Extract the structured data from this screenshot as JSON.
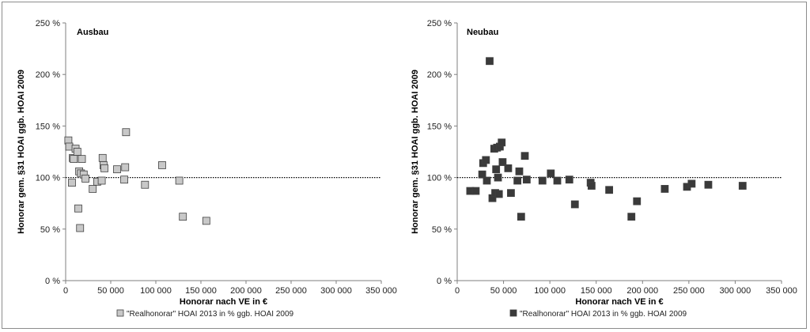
{
  "chart_data": [
    {
      "type": "scatter",
      "title": "Ausbau",
      "xlabel": "Honorar  nach VE in €",
      "ylabel": "Honorar gem. §31 HOAI ggb. HOAI 2009",
      "xlim": [
        0,
        350000
      ],
      "ylim": [
        0,
        250
      ],
      "x_ticks": [
        0,
        50000,
        100000,
        150000,
        200000,
        250000,
        300000,
        350000
      ],
      "x_tick_labels": [
        "0",
        "50 000",
        "100 000",
        "150 000",
        "200 000",
        "250 000",
        "300 000",
        "350 000"
      ],
      "y_ticks": [
        0,
        50,
        100,
        150,
        200,
        250
      ],
      "y_tick_labels": [
        "0 %",
        "50 %",
        "100 %",
        "150 %",
        "200 %",
        "250 %"
      ],
      "reference_line": 100,
      "marker_color": "#c8c8c8",
      "series": [
        {
          "name": "\"Realhonorar\" HOAI 2013 in % ggb. HOAI 2009",
          "points": [
            [
              3000,
              136
            ],
            [
              4000,
              130
            ],
            [
              7000,
              95
            ],
            [
              8000,
              119
            ],
            [
              9000,
              118
            ],
            [
              11000,
              128
            ],
            [
              13000,
              125
            ],
            [
              14000,
              70
            ],
            [
              15000,
              106
            ],
            [
              16000,
              51
            ],
            [
              17000,
              104
            ],
            [
              18000,
              118
            ],
            [
              20000,
              103
            ],
            [
              22000,
              99
            ],
            [
              30000,
              89
            ],
            [
              35000,
              96
            ],
            [
              40000,
              97
            ],
            [
              41000,
              119
            ],
            [
              42000,
              112
            ],
            [
              43000,
              109
            ],
            [
              57000,
              108
            ],
            [
              65000,
              98
            ],
            [
              66000,
              110
            ],
            [
              67000,
              144
            ],
            [
              88000,
              93
            ],
            [
              107000,
              112
            ],
            [
              126000,
              97
            ],
            [
              130000,
              62
            ],
            [
              156000,
              58
            ]
          ]
        }
      ]
    },
    {
      "type": "scatter",
      "title": "Neubau",
      "xlabel": "Honorar  nach VE in €",
      "ylabel": "Honorar gem. §31 HOAI ggb. HOAI 2009",
      "xlim": [
        0,
        350000
      ],
      "ylim": [
        0,
        250
      ],
      "x_ticks": [
        0,
        50000,
        100000,
        150000,
        200000,
        250000,
        300000,
        350000
      ],
      "x_tick_labels": [
        "0",
        "50 000",
        "100 000",
        "150 000",
        "200 000",
        "250 000",
        "300 000",
        "350 000"
      ],
      "y_ticks": [
        0,
        50,
        100,
        150,
        200,
        250
      ],
      "y_tick_labels": [
        "0 %",
        "50 %",
        "100 %",
        "150 %",
        "200 %",
        "250 %"
      ],
      "reference_line": 100,
      "marker_color": "#3a3a3a",
      "series": [
        {
          "name": "\"Realhonorar\" HOAI 2013 in % ggb. HOAI 2009",
          "points": [
            [
              14000,
              87
            ],
            [
              20000,
              87
            ],
            [
              27000,
              103
            ],
            [
              28000,
              114
            ],
            [
              31000,
              117
            ],
            [
              32000,
              97
            ],
            [
              35000,
              213
            ],
            [
              38000,
              80
            ],
            [
              40000,
              128
            ],
            [
              41000,
              85
            ],
            [
              42000,
              108
            ],
            [
              43000,
              129
            ],
            [
              44000,
              100
            ],
            [
              45000,
              84
            ],
            [
              46000,
              130
            ],
            [
              48000,
              134
            ],
            [
              49000,
              115
            ],
            [
              55000,
              109
            ],
            [
              58000,
              85
            ],
            [
              65000,
              97
            ],
            [
              67000,
              106
            ],
            [
              69000,
              62
            ],
            [
              73000,
              121
            ],
            [
              75000,
              98
            ],
            [
              92000,
              97
            ],
            [
              101000,
              104
            ],
            [
              108000,
              97
            ],
            [
              121000,
              98
            ],
            [
              127000,
              74
            ],
            [
              144000,
              95
            ],
            [
              145000,
              92
            ],
            [
              164000,
              88
            ],
            [
              188000,
              62
            ],
            [
              194000,
              77
            ],
            [
              224000,
              89
            ],
            [
              248000,
              91
            ],
            [
              253000,
              94
            ],
            [
              271000,
              93
            ],
            [
              308000,
              92
            ]
          ]
        }
      ]
    }
  ]
}
